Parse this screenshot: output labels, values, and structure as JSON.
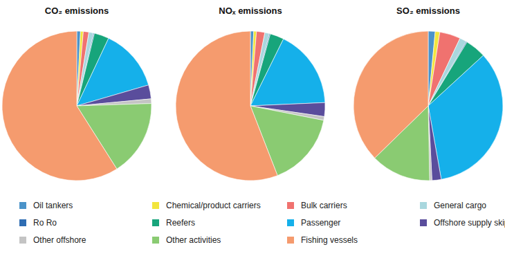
{
  "chart_data": {
    "type": "pie",
    "categories": [
      "Oil tankers",
      "Chemical/product carriers",
      "Bulk carriers",
      "General cargo",
      "Ro Ro",
      "Reefers",
      "Passenger",
      "Offshore supply skip",
      "Other offshore",
      "Other activities",
      "Fishing vessels"
    ],
    "colors": [
      "#4b93c9",
      "#f2e53d",
      "#f0726f",
      "#a9d7de",
      "#2f6db3",
      "#17a57b",
      "#15b0ea",
      "#5a4d9c",
      "#c4c4c4",
      "#8acb72",
      "#f59b6e"
    ],
    "legend": "bottom",
    "series": [
      {
        "name": "CO₂ emissions",
        "values": [
          0.8,
          0.6,
          1.2,
          1.0,
          0.2,
          3.2,
          13.5,
          3.0,
          1.0,
          16.5,
          59.0
        ]
      },
      {
        "name": "NOₓ emissions",
        "values": [
          0.7,
          0.6,
          1.8,
          1.0,
          0.2,
          3.0,
          17.0,
          3.0,
          0.8,
          16.0,
          55.9
        ]
      },
      {
        "name": "SO₂ emissions",
        "values": [
          1.5,
          1.0,
          4.5,
          1.5,
          0.2,
          4.5,
          34.0,
          2.0,
          0.5,
          13.0,
          37.3
        ]
      }
    ]
  }
}
